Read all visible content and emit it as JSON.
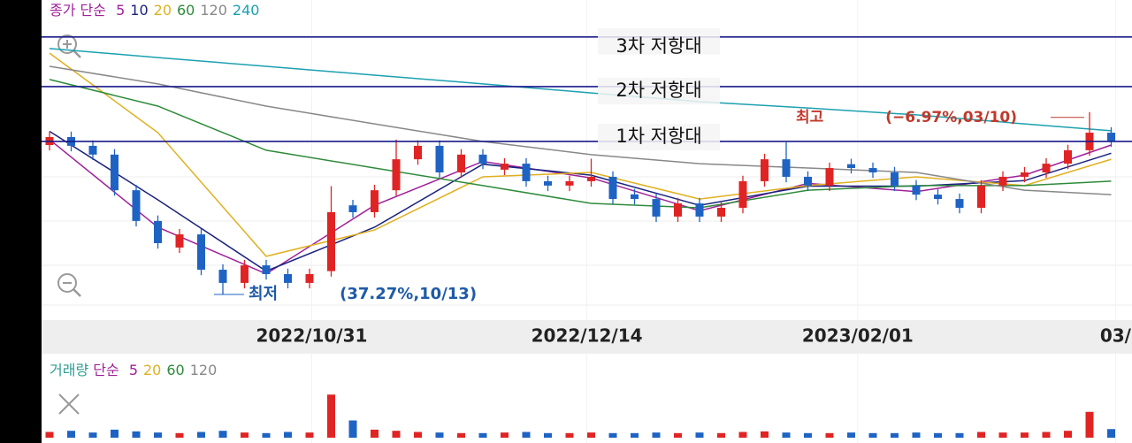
{
  "chart_data": {
    "type": "candlestick",
    "legend_label": "종가",
    "legend_kind": "단순",
    "ylim": [
      0,
      100
    ],
    "up_color": "#e02424",
    "down_color": "#1e63c4",
    "open": [
      60.0,
      62.9,
      59.7,
      56.5,
      43.5,
      32.3,
      22.6,
      27.4,
      14.5,
      9.7,
      16.1,
      12.9,
      9.7,
      14.0,
      38.0,
      35.5,
      43.5,
      54.8,
      59.7,
      50.0,
      56.5,
      51.0,
      53.2,
      46.8,
      45.2,
      46.8,
      48.4,
      42.0,
      40.3,
      33.9,
      38.7,
      33.9,
      37.1,
      46.8,
      54.8,
      48.4,
      45.2,
      53.0,
      51.6,
      50.0,
      45.2,
      41.9,
      40.3,
      37.1,
      45.2,
      48.4,
      50.0,
      53.2,
      58.1,
      64.5
    ],
    "high": [
      64.9,
      64.9,
      61.7,
      58.5,
      45.5,
      34.3,
      29.4,
      29.4,
      16.5,
      18.1,
      18.1,
      14.9,
      14.9,
      45.0,
      40.0,
      45.5,
      62.0,
      61.7,
      61.7,
      58.5,
      58.5,
      55.2,
      55.2,
      48.8,
      48.8,
      55.0,
      50.4,
      44.0,
      42.3,
      40.7,
      40.7,
      39.1,
      48.8,
      56.8,
      61.0,
      50.4,
      53.6,
      55.0,
      53.6,
      52.0,
      47.2,
      43.9,
      42.3,
      47.2,
      50.4,
      52.0,
      55.2,
      60.1,
      72.0,
      66.5
    ],
    "low": [
      58.0,
      57.7,
      54.5,
      41.5,
      30.3,
      22.2,
      20.6,
      12.5,
      5.5,
      7.7,
      10.9,
      7.7,
      7.7,
      12.0,
      33.5,
      33.5,
      41.5,
      52.8,
      48.0,
      48.0,
      51.2,
      49.0,
      44.8,
      43.2,
      43.2,
      44.8,
      38.3,
      38.3,
      31.9,
      31.9,
      31.9,
      31.9,
      35.1,
      44.8,
      46.4,
      43.2,
      43.2,
      49.6,
      48.0,
      43.2,
      39.9,
      38.3,
      35.1,
      35.1,
      43.2,
      46.4,
      48.0,
      51.2,
      56.1,
      59.3
    ],
    "close": [
      62.9,
      59.7,
      56.5,
      43.5,
      32.3,
      24.2,
      27.4,
      14.5,
      9.7,
      16.1,
      12.9,
      9.7,
      12.9,
      35.5,
      35.5,
      43.5,
      54.8,
      59.7,
      50.0,
      56.5,
      53.2,
      53.2,
      46.8,
      45.2,
      46.8,
      48.4,
      40.3,
      40.3,
      33.9,
      38.7,
      33.9,
      37.1,
      46.8,
      54.8,
      48.4,
      45.2,
      51.6,
      51.6,
      50.0,
      45.2,
      41.9,
      40.3,
      37.1,
      45.2,
      48.4,
      50.0,
      53.2,
      58.1,
      64.5,
      61.3
    ],
    "series": [
      {
        "name": "5",
        "color": "#a0209a",
        "x": [
          0,
          5,
          10,
          15,
          20,
          25,
          30,
          35,
          40,
          45,
          49
        ],
        "values": [
          62,
          30,
          13,
          38,
          54,
          48,
          36,
          46,
          43,
          49,
          60
        ]
      },
      {
        "name": "10",
        "color": "#1a237e",
        "x": [
          0,
          5,
          10,
          15,
          20,
          25,
          30,
          35,
          40,
          45,
          49
        ],
        "values": [
          65,
          40,
          14,
          30,
          53,
          49,
          38,
          45,
          45,
          47,
          57
        ]
      },
      {
        "name": "20",
        "color": "#e0b020",
        "x": [
          0,
          5,
          10,
          15,
          20,
          25,
          30,
          35,
          40,
          45,
          49
        ],
        "values": [
          93.5,
          64.5,
          19.4,
          29.0,
          48.4,
          50.0,
          40.3,
          45.2,
          48.4,
          45.2,
          54.8
        ]
      },
      {
        "name": "60",
        "color": "#2e8b3a",
        "x": [
          0,
          5,
          10,
          15,
          20,
          25,
          30,
          35,
          40,
          45,
          49
        ],
        "values": [
          83.9,
          74.2,
          58.1,
          51.6,
          45.2,
          38.7,
          37.1,
          43.5,
          45.2,
          45.2,
          46.8
        ]
      },
      {
        "name": "120",
        "color": "#888888",
        "x": [
          0,
          5,
          10,
          15,
          20,
          25,
          30,
          35,
          40,
          45,
          49
        ],
        "values": [
          88.7,
          82.3,
          74.2,
          67.7,
          61.3,
          56.5,
          53.2,
          51.6,
          50.0,
          43.5,
          41.9
        ]
      },
      {
        "name": "240",
        "color": "#1ba0b0",
        "x": [
          0,
          5,
          10,
          15,
          20,
          25,
          30,
          35,
          40,
          45,
          49
        ],
        "values": [
          95.2,
          91.9,
          88.7,
          85.5,
          82.3,
          79.0,
          75.8,
          73.5,
          71.0,
          67.7,
          65.2
        ]
      }
    ],
    "resistance": [
      {
        "label": "3차 저항대",
        "value": 99.4
      },
      {
        "label": "2차 저항대",
        "value": 81.3
      },
      {
        "label": "1차 저항대",
        "value": 61.3
      }
    ],
    "max_label": {
      "prefix": "최고",
      "text": "(−6.97%,03/10)"
    },
    "min_label": {
      "prefix": "최저",
      "text": "(37.27%,10/13)"
    },
    "dates": [
      {
        "label": "2022/10/31",
        "x": 12.1
      },
      {
        "label": "2022/12/14",
        "x": 24.8
      },
      {
        "label": "2023/02/01",
        "x": 37.3
      },
      {
        "label": "03/",
        "x": 49.2
      }
    ],
    "volume": {
      "legend_label": "거래량",
      "legend_kind": "단순",
      "ma_names": [
        {
          "name": "5",
          "color": "#a0209a"
        },
        {
          "name": "20",
          "color": "#e0b020"
        },
        {
          "name": "60",
          "color": "#2e8b3a"
        },
        {
          "name": "120",
          "color": "#888888"
        }
      ],
      "ylim": [
        0,
        100
      ],
      "values": [
        10,
        12,
        9,
        14,
        11,
        9,
        8,
        10,
        12,
        9,
        8,
        10,
        9,
        75,
        30,
        14,
        12,
        10,
        9,
        8,
        8,
        9,
        10,
        8,
        8,
        9,
        8,
        8,
        9,
        8,
        9,
        8,
        10,
        11,
        9,
        8,
        8,
        9,
        8,
        8,
        9,
        8,
        8,
        10,
        9,
        9,
        10,
        12,
        45,
        15
      ]
    }
  }
}
